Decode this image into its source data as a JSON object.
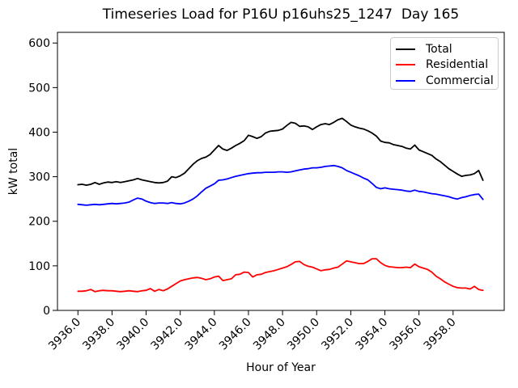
{
  "figure": {
    "background": "#ffffff"
  },
  "chart_data": {
    "type": "line",
    "title": "Timeseries Load for P16U p16uhs25_1247  Day 165",
    "xlabel": "Hour of Year",
    "ylabel": "kW total",
    "grid": false,
    "legend": {
      "position": "upper right",
      "entries": [
        "Total",
        "Residential",
        "Commercial"
      ]
    },
    "xlim": [
      3934.8,
      3961.0
    ],
    "ylim": [
      0,
      624
    ],
    "x_ticks": [
      3936,
      3938,
      3940,
      3942,
      3944,
      3946,
      3948,
      3950,
      3952,
      3954,
      3956,
      3958
    ],
    "x_tick_labels": [
      "3936.0",
      "3938.0",
      "3940.0",
      "3942.0",
      "3944.0",
      "3946.0",
      "3948.0",
      "3950.0",
      "3952.0",
      "3954.0",
      "3956.0",
      "3958.0"
    ],
    "x_tick_rotation": 45,
    "y_ticks": [
      0,
      100,
      200,
      300,
      400,
      500,
      600
    ],
    "y_tick_labels": [
      "0",
      "100",
      "200",
      "300",
      "400",
      "500",
      "600"
    ],
    "x_start": 3936.0,
    "x_step": 0.25,
    "series": [
      {
        "name": "Total",
        "color": "#000000",
        "values": [
          282,
          283,
          281,
          283,
          287,
          283,
          286,
          288,
          287,
          289,
          287,
          289,
          291,
          293,
          296,
          293,
          291,
          289,
          287,
          286,
          287,
          290,
          300,
          298,
          302,
          308,
          318,
          328,
          336,
          341,
          344,
          350,
          360,
          370,
          362,
          359,
          364,
          370,
          375,
          381,
          393,
          390,
          386,
          390,
          398,
          402,
          403,
          404,
          407,
          415,
          422,
          420,
          413,
          414,
          412,
          406,
          412,
          417,
          419,
          417,
          422,
          428,
          431,
          424,
          416,
          412,
          409,
          407,
          403,
          398,
          391,
          380,
          377,
          376,
          372,
          370,
          368,
          364,
          362,
          371,
          360,
          356,
          352,
          348,
          340,
          334,
          326,
          318,
          312,
          306,
          301,
          303,
          304,
          307,
          314,
          292
        ]
      },
      {
        "name": "Residential",
        "color": "#ff0000",
        "values": [
          43,
          43,
          44,
          47,
          42,
          44,
          45,
          44,
          44,
          43,
          42,
          43,
          44,
          43,
          42,
          44,
          45,
          49,
          43,
          47,
          44,
          48,
          54,
          60,
          66,
          69,
          71,
          73,
          74,
          72,
          69,
          71,
          75,
          77,
          67,
          69,
          71,
          80,
          81,
          86,
          85,
          75,
          80,
          81,
          85,
          87,
          89,
          92,
          95,
          98,
          103,
          109,
          110,
          103,
          99,
          97,
          93,
          89,
          91,
          92,
          95,
          97,
          104,
          111,
          109,
          107,
          105,
          105,
          110,
          116,
          116,
          107,
          101,
          98,
          97,
          96,
          96,
          97,
          96,
          104,
          98,
          95,
          92,
          86,
          77,
          71,
          64,
          59,
          54,
          51,
          50,
          50,
          48,
          54,
          47,
          45
        ]
      },
      {
        "name": "Commercial",
        "color": "#0000ff",
        "values": [
          238,
          237,
          236,
          237,
          238,
          237,
          238,
          239,
          240,
          239,
          240,
          241,
          243,
          248,
          252,
          250,
          245,
          242,
          240,
          241,
          241,
          240,
          242,
          240,
          239,
          241,
          245,
          250,
          257,
          266,
          274,
          279,
          284,
          292,
          293,
          295,
          298,
          301,
          303,
          305,
          307,
          308,
          309,
          309,
          310,
          310,
          310,
          311,
          311,
          310,
          311,
          313,
          315,
          317,
          318,
          320,
          320,
          321,
          323,
          324,
          325,
          323,
          320,
          314,
          310,
          306,
          302,
          297,
          293,
          285,
          276,
          273,
          275,
          273,
          272,
          271,
          270,
          268,
          267,
          270,
          267,
          266,
          264,
          262,
          261,
          259,
          257,
          255,
          252,
          250,
          253,
          255,
          258,
          260,
          261,
          249
        ]
      }
    ]
  }
}
